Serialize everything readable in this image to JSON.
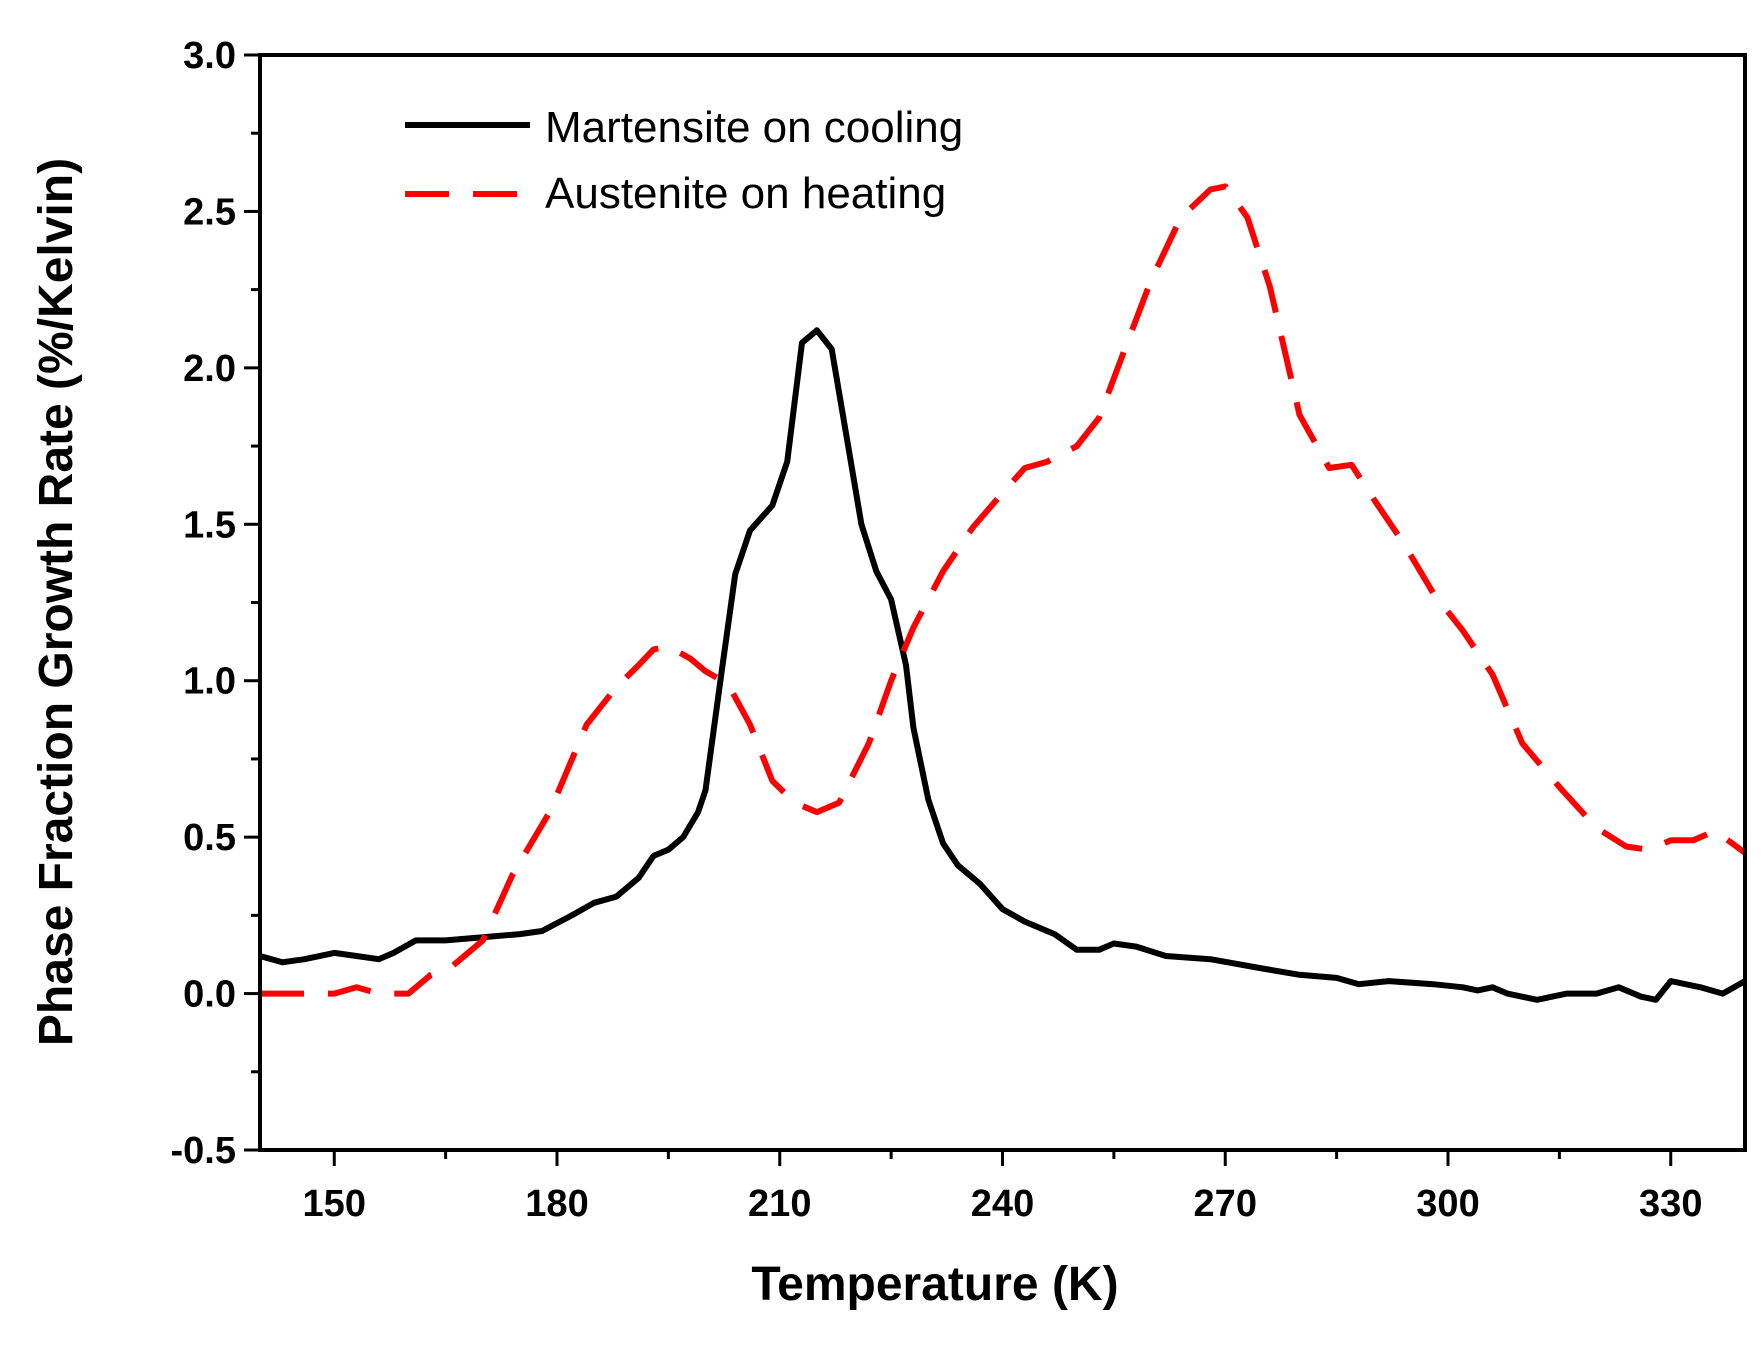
{
  "chart_data": {
    "type": "line",
    "title": "",
    "xlabel": "Temperature (K)",
    "ylabel": "Phase Fraction Growth Rate (%/Kelvin)",
    "xlim": [
      140,
      340
    ],
    "ylim": [
      -0.5,
      3.0
    ],
    "x_ticks": [
      150,
      180,
      210,
      240,
      270,
      300,
      330
    ],
    "x_tick_labels": [
      "150",
      "180",
      "210",
      "240",
      "270",
      "300",
      "330"
    ],
    "y_ticks": [
      -0.5,
      0.0,
      0.5,
      1.0,
      1.5,
      2.0,
      2.5,
      3.0
    ],
    "y_tick_labels": [
      "-0.5",
      "0.0",
      "0.5",
      "1.0",
      "1.5",
      "2.0",
      "2.5",
      "3.0"
    ],
    "grid": false,
    "legend_position": "top-left",
    "series": [
      {
        "name": "Martensite on cooling",
        "color": "#000000",
        "style": "solid",
        "x": [
          140,
          143,
          146,
          150,
          153,
          156,
          158,
          161,
          165,
          170,
          175,
          178,
          182,
          185,
          188,
          191,
          193,
          195,
          197,
          199,
          200,
          202,
          204,
          206,
          209,
          211,
          213,
          215,
          217,
          219,
          221,
          223,
          225,
          227,
          228,
          230,
          232,
          234,
          237,
          240,
          243,
          247,
          250,
          253,
          255,
          258,
          262,
          268,
          275,
          280,
          285,
          288,
          292,
          298,
          302,
          304,
          306,
          308,
          312,
          316,
          318,
          320,
          323,
          326,
          328,
          330,
          334,
          337,
          340
        ],
        "y": [
          0.12,
          0.1,
          0.11,
          0.13,
          0.12,
          0.11,
          0.13,
          0.17,
          0.17,
          0.18,
          0.19,
          0.2,
          0.25,
          0.29,
          0.31,
          0.37,
          0.44,
          0.46,
          0.5,
          0.58,
          0.65,
          1.0,
          1.34,
          1.48,
          1.56,
          1.7,
          2.08,
          2.12,
          2.06,
          1.78,
          1.5,
          1.35,
          1.26,
          1.05,
          0.85,
          0.62,
          0.48,
          0.41,
          0.35,
          0.27,
          0.23,
          0.19,
          0.14,
          0.14,
          0.16,
          0.15,
          0.12,
          0.11,
          0.08,
          0.06,
          0.05,
          0.03,
          0.04,
          0.03,
          0.02,
          0.01,
          0.02,
          0.0,
          -0.02,
          0.0,
          0.0,
          0.0,
          0.02,
          -0.01,
          -0.02,
          0.04,
          0.02,
          0.0,
          0.04
        ]
      },
      {
        "name": "Austenite on heating",
        "color": "#ff0000",
        "style": "dashed",
        "x": [
          140,
          145,
          150,
          153,
          156,
          160,
          163,
          166,
          170,
          174,
          179,
          184,
          188,
          191,
          193,
          195,
          198,
          200,
          203,
          206,
          209,
          212,
          215,
          218,
          222,
          225,
          228,
          232,
          236,
          240,
          243,
          246,
          250,
          253,
          256,
          260,
          264,
          268,
          270,
          273,
          276,
          280,
          284,
          287,
          290,
          294,
          298,
          302,
          306,
          310,
          315,
          320,
          324,
          327,
          330,
          333,
          336,
          340
        ],
        "y": [
          0.0,
          0.0,
          0.0,
          0.02,
          0.0,
          0.0,
          0.06,
          0.09,
          0.17,
          0.38,
          0.58,
          0.86,
          0.98,
          1.05,
          1.1,
          1.11,
          1.07,
          1.03,
          0.99,
          0.86,
          0.68,
          0.61,
          0.58,
          0.61,
          0.8,
          1.0,
          1.17,
          1.35,
          1.49,
          1.6,
          1.68,
          1.7,
          1.75,
          1.84,
          2.03,
          2.28,
          2.48,
          2.57,
          2.58,
          2.48,
          2.26,
          1.85,
          1.68,
          1.69,
          1.58,
          1.44,
          1.28,
          1.16,
          1.02,
          0.8,
          0.66,
          0.53,
          0.47,
          0.46,
          0.49,
          0.49,
          0.52,
          0.45
        ]
      }
    ]
  }
}
